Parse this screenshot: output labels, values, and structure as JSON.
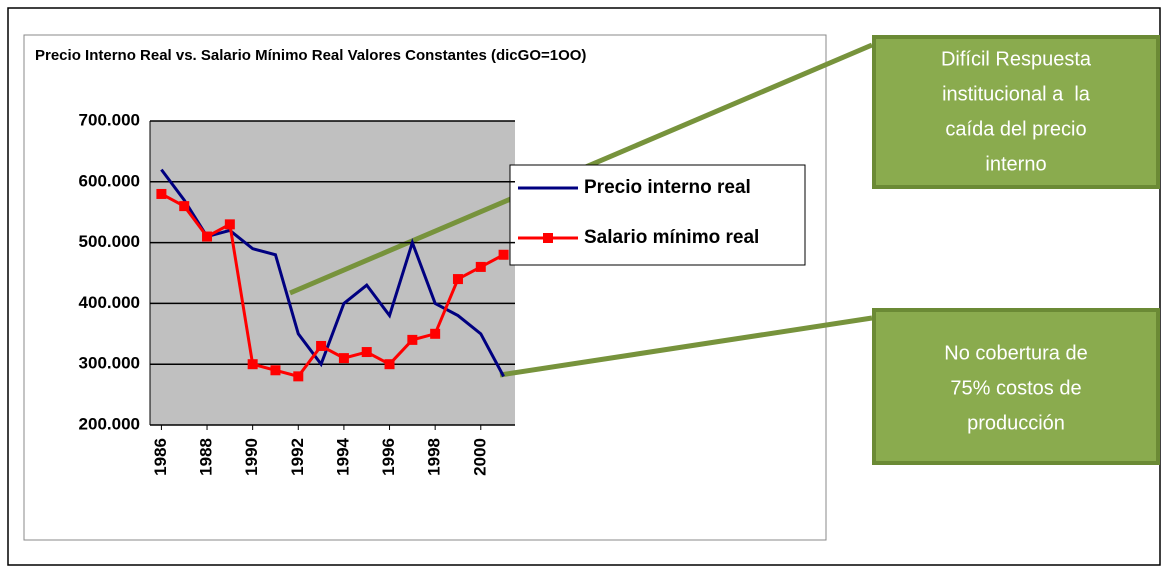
{
  "chart_data": {
    "type": "line",
    "title": "Precio Interno Real vs. Salario Mínimo Real Valores Constantes (dicGO=1OO)",
    "x": [
      1986,
      1987,
      1988,
      1989,
      1990,
      1991,
      1992,
      1993,
      1994,
      1995,
      1996,
      1997,
      1998,
      1999,
      2000,
      2001
    ],
    "series": [
      {
        "name": "Precio interno real",
        "color": "#000080",
        "marker": "none",
        "values": [
          620,
          570,
          510,
          520,
          490,
          480,
          350,
          300,
          400,
          430,
          380,
          500,
          400,
          380,
          350,
          280
        ]
      },
      {
        "name": "Salario mínimo real",
        "color": "#ff0000",
        "marker": "square",
        "values": [
          580,
          560,
          510,
          530,
          300,
          290,
          280,
          330,
          310,
          320,
          300,
          340,
          350,
          440,
          460,
          480
        ]
      }
    ],
    "xlim": [
      1985.5,
      2001.5
    ],
    "xticks": [
      1986,
      1988,
      1990,
      1992,
      1994,
      1996,
      1998,
      2000
    ],
    "ylim": [
      200,
      700
    ],
    "yticks": [
      {
        "value": 200,
        "label": "200.000"
      },
      {
        "value": 300,
        "label": "300.000"
      },
      {
        "value": 400,
        "label": "400.000"
      },
      {
        "value": 500,
        "label": "500.000"
      },
      {
        "value": 600,
        "label": "600.000"
      },
      {
        "value": 700,
        "label": "700.000"
      }
    ],
    "grid": true,
    "legend": "right",
    "annotations": [
      {
        "lines": [
          "Difícil Respuesta",
          "institucional a  la",
          "caída del precio",
          "interno"
        ]
      },
      {
        "lines": [
          "No cobertura de",
          "75% costos de",
          "producción"
        ]
      }
    ]
  }
}
